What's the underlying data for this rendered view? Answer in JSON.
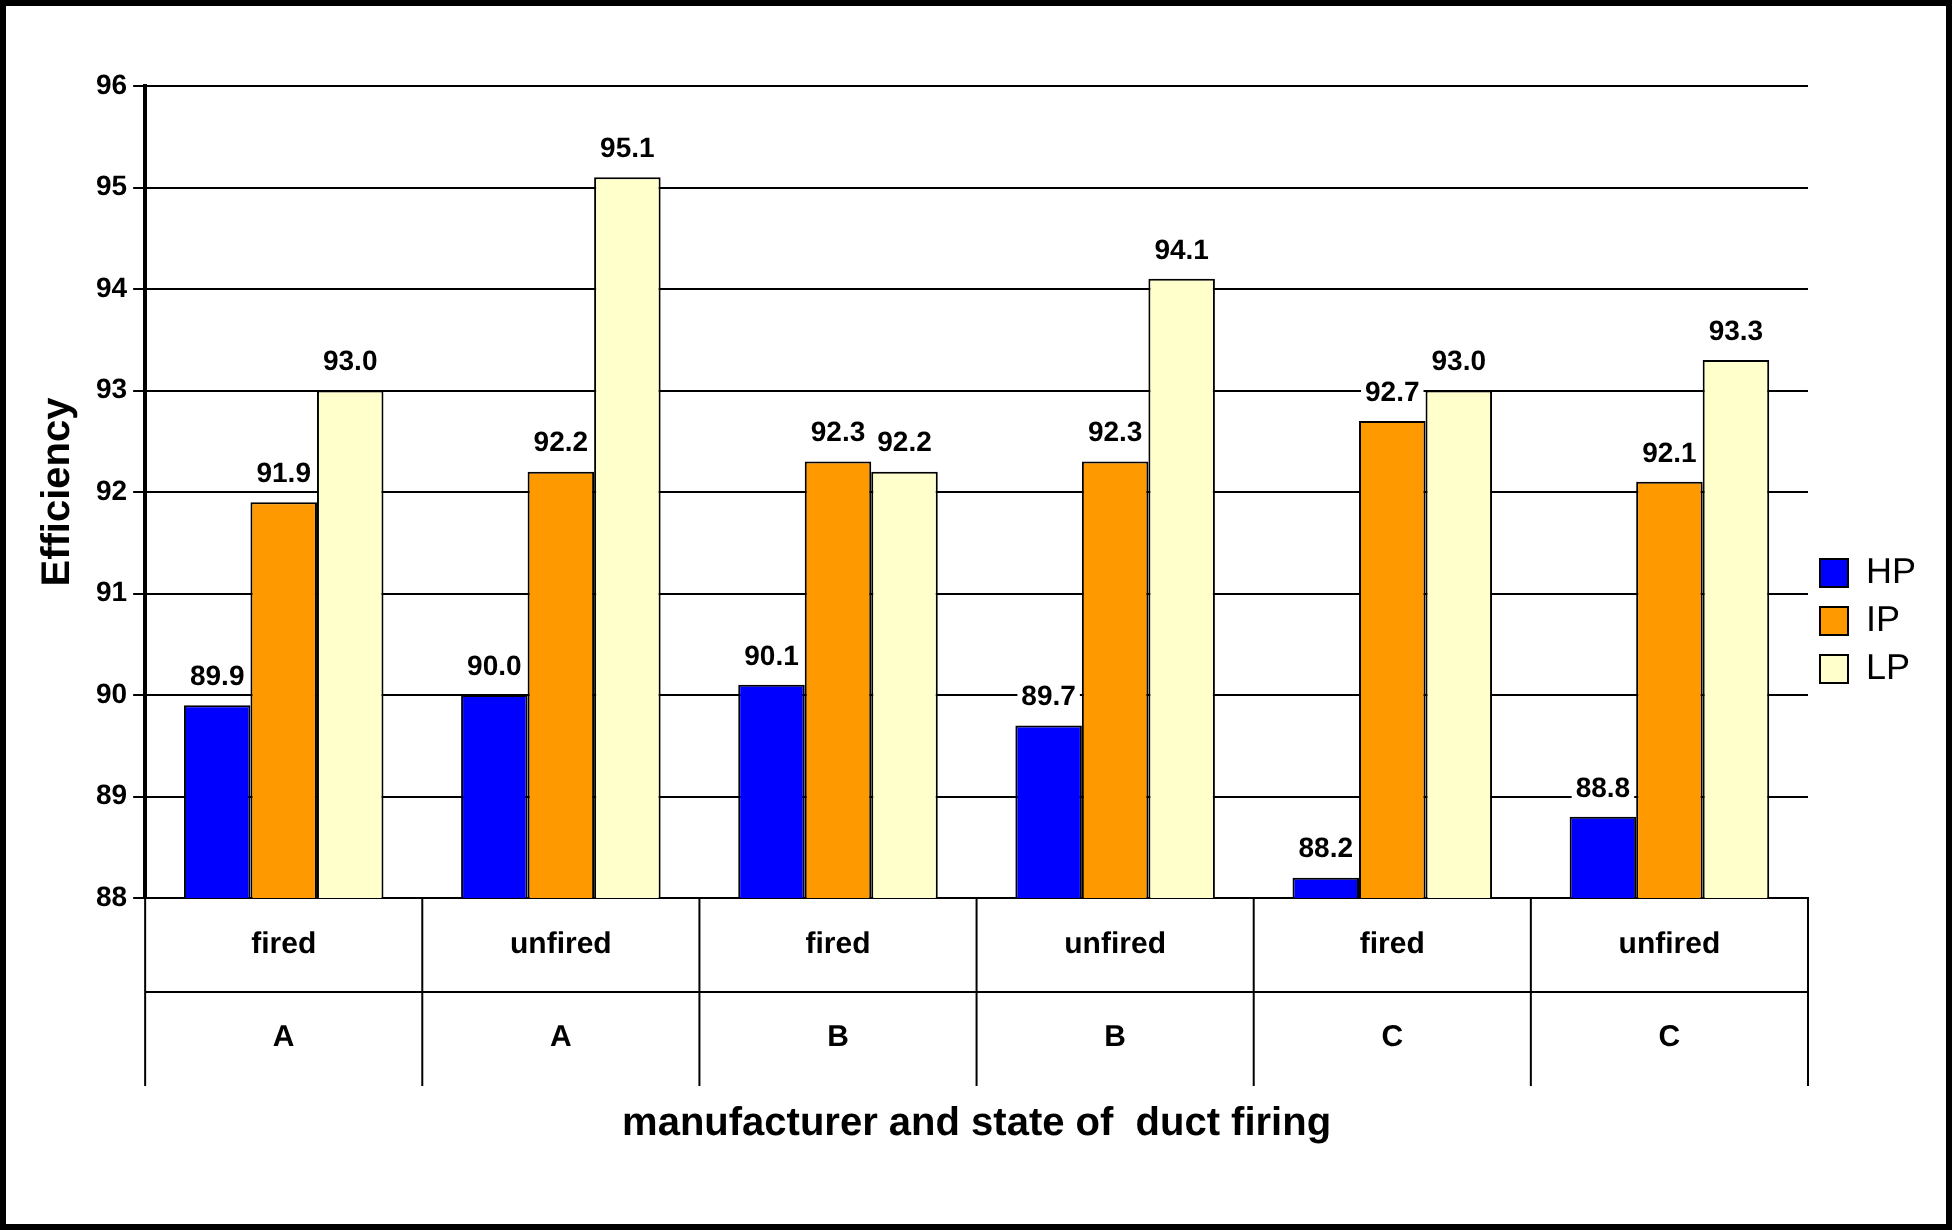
{
  "chart_data": {
    "type": "bar",
    "xlabel": "manufacturer and state of  duct firing",
    "ylabel": "Efficiency",
    "categories": [
      "fired\nA",
      "unfired\nA",
      "fired\nB",
      "unfired\nB",
      "fired\nC",
      "unfired\nC"
    ],
    "series": [
      {
        "name": "HP",
        "color": "#0000ff",
        "values": [
          89.9,
          90.0,
          90.1,
          89.7,
          88.2,
          88.8
        ],
        "value_labels": [
          "89.9",
          "90.0",
          "90.1",
          "89.7",
          "88.2",
          "88.8"
        ]
      },
      {
        "name": "IP",
        "color": "#ff9900",
        "values": [
          91.9,
          92.2,
          92.3,
          92.3,
          92.7,
          92.1
        ],
        "value_labels": [
          "91.9",
          "92.2",
          "92.3",
          "92.3",
          "92.7",
          "92.1"
        ]
      },
      {
        "name": "LP",
        "color": "#ffffcc",
        "values": [
          93.0,
          95.1,
          92.2,
          94.1,
          93.0,
          93.3
        ],
        "value_labels": [
          "93.0",
          "95.1",
          "92.2",
          "94.1",
          "93.0",
          "93.3"
        ]
      }
    ],
    "ylim": [
      88,
      96
    ],
    "yticks": [
      88,
      89,
      90,
      91,
      92,
      93,
      94,
      95,
      96
    ],
    "grid": "y",
    "legend": "right"
  }
}
